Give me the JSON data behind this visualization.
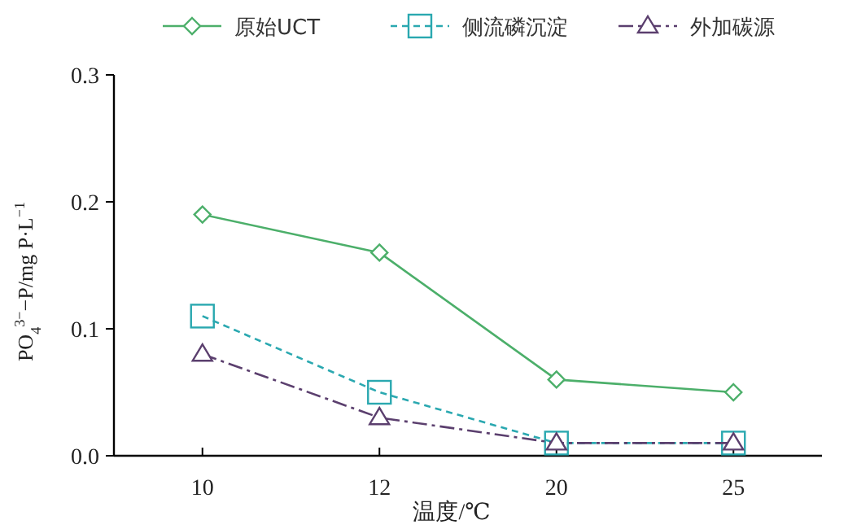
{
  "chart_data": {
    "type": "line",
    "xlabel": "温度/℃",
    "ylabel": "PO$_{4}$$^{3−}$−P/mg P·L$^{−1}$",
    "categories": [
      "10",
      "12",
      "20",
      "25"
    ],
    "ylim": [
      0,
      0.3
    ],
    "yticks": [
      {
        "value": 0,
        "label": "0.0"
      },
      0.1,
      0.2,
      0.3
    ],
    "legend": "top",
    "grid": false,
    "series": [
      {
        "name": "原始UCT",
        "color": "#4caf6a",
        "marker": "diamond",
        "line_style": "solid",
        "values": [
          0.19,
          0.16,
          0.06,
          0.05
        ]
      },
      {
        "name": "侧流磷沉淀",
        "color": "#2aa8b0",
        "marker": "square",
        "line_style": "dashed",
        "values": [
          0.11,
          0.05,
          0.01,
          0.01
        ]
      },
      {
        "name": "外加碳源",
        "color": "#5b3f6e",
        "marker": "triangle",
        "line_style": "dashdot",
        "values": [
          0.08,
          0.03,
          0.01,
          0.01
        ]
      }
    ]
  }
}
